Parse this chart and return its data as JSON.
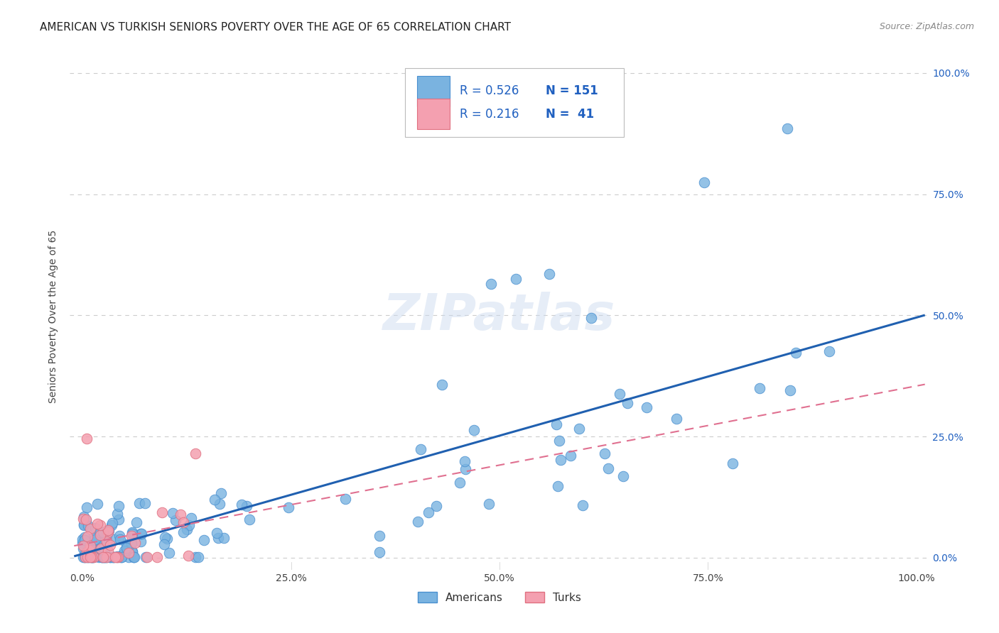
{
  "title": "AMERICAN VS TURKISH SENIORS POVERTY OVER THE AGE OF 65 CORRELATION CHART",
  "source": "Source: ZipAtlas.com",
  "ylabel": "Seniors Poverty Over the Age of 65",
  "background_color": "#ffffff",
  "watermark_text": "ZIPatlas",
  "americans_color": "#7ab3e0",
  "americans_edge_color": "#4a90d0",
  "turks_color": "#f4a0b0",
  "turks_edge_color": "#e07080",
  "americans_line_color": "#2060b0",
  "turks_line_color": "#e07090",
  "legend_text_color": "#2060c0",
  "right_tick_color": "#2060c0",
  "title_color": "#222222",
  "source_color": "#888888",
  "grid_color": "#cccccc",
  "label_color": "#444444",
  "bottom_label_color": "#333333",
  "legend_R1": "R = 0.526",
  "legend_N1": "N = 151",
  "legend_R2": "R = 0.216",
  "legend_N2": "N =  41"
}
